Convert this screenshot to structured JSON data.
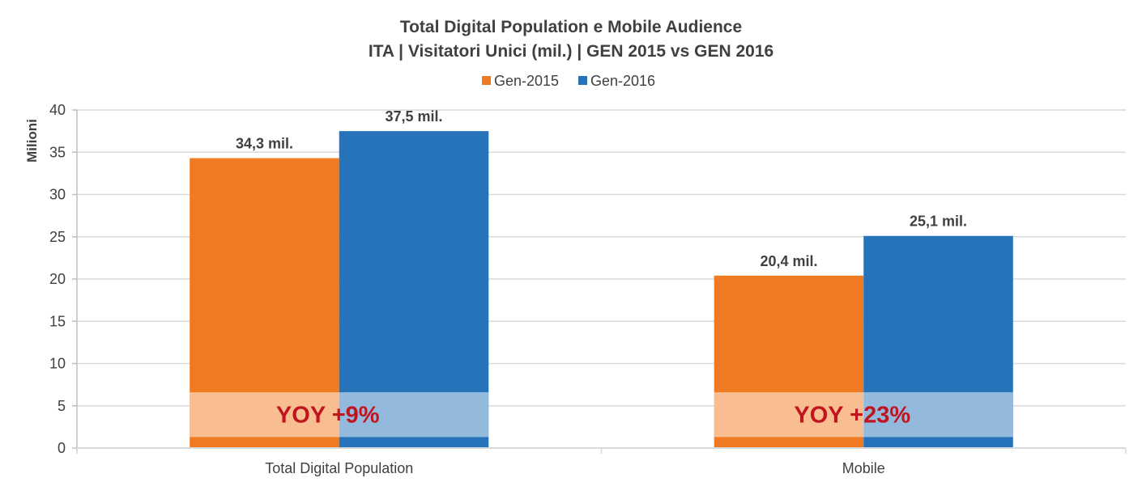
{
  "chart_data": {
    "type": "bar",
    "title": "Total Digital Population e Mobile Audience",
    "subtitle": "ITA | Visitatori Unici (mil.) | GEN 2015 vs GEN 2016",
    "xlabel": "",
    "ylabel": "Milioni",
    "ylim": [
      0,
      40
    ],
    "yticks": [
      0,
      5,
      10,
      15,
      20,
      25,
      30,
      35,
      40
    ],
    "grid": true,
    "legend_position": "top-center",
    "categories": [
      "Total Digital Population",
      "Mobile"
    ],
    "series": [
      {
        "name": "Gen-2015",
        "color": "#f07a22",
        "values": [
          34.3,
          20.4
        ],
        "labels": [
          "34,3 mil.",
          "20,4 mil."
        ]
      },
      {
        "name": "Gen-2016",
        "color": "#2673ba",
        "values": [
          37.5,
          25.1
        ],
        "labels": [
          "37,5 mil.",
          "25,1 mil."
        ]
      }
    ],
    "annotations": [
      {
        "category": "Total Digital Population",
        "text": "YOY +9%",
        "band": [
          1.3,
          6.6
        ]
      },
      {
        "category": "Mobile",
        "text": "YOY +23%",
        "band": [
          1.3,
          6.6
        ]
      }
    ],
    "annotation_color": "#c0141e"
  }
}
